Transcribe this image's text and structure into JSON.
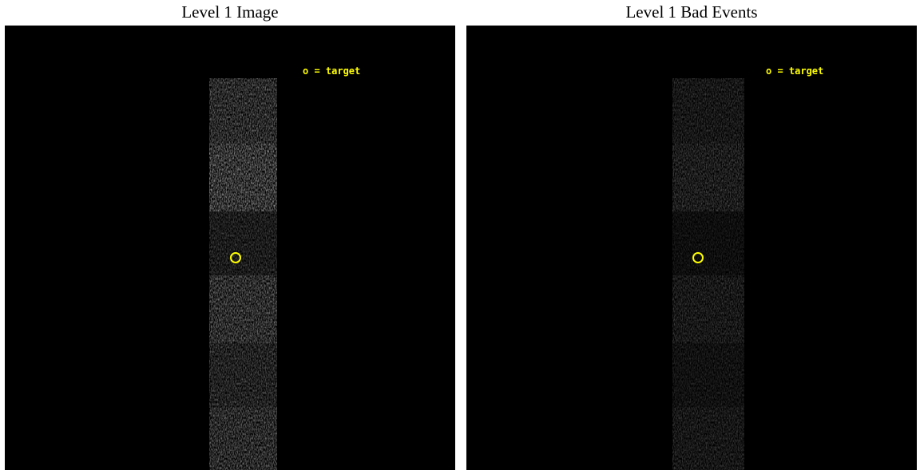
{
  "panels": [
    {
      "title": "Level 1 Image",
      "legend": "o = target"
    },
    {
      "title": "Level 1 Bad Events",
      "legend": "o = target"
    }
  ]
}
